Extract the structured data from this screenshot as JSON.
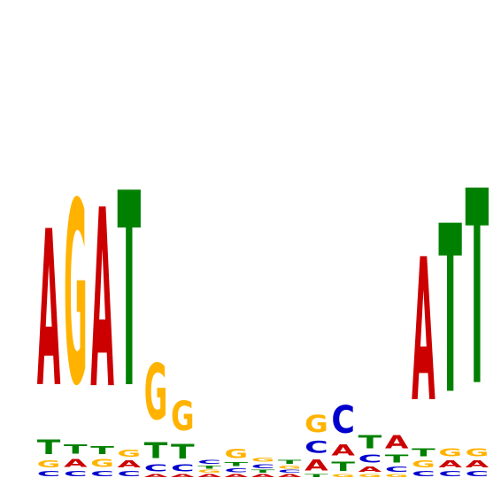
{
  "chart_data": {
    "type": "sequence-logo",
    "alphabet": [
      "A",
      "C",
      "G",
      "T"
    ],
    "colors": {
      "A": "#cc0000",
      "C": "#0000cc",
      "G": "#ffb300",
      "T": "#008000"
    },
    "ylim": [
      0,
      2
    ],
    "positions": [
      {
        "A": 1.18,
        "C": 0.04,
        "G": 0.05,
        "T": 0.11
      },
      {
        "A": 0.06,
        "C": 0.04,
        "G": 1.38,
        "T": 0.07
      },
      {
        "A": 1.35,
        "C": 0.04,
        "G": 0.06,
        "T": 0.06
      },
      {
        "A": 0.05,
        "C": 0.04,
        "G": 0.05,
        "T": 1.47
      },
      {
        "A": 0.02,
        "C": 0.05,
        "G": 0.42,
        "T": 0.12
      },
      {
        "A": 0.02,
        "C": 0.05,
        "G": 0.22,
        "T": 0.11
      },
      {
        "A": 0.02,
        "C": 0.03,
        "G": 0.02,
        "T": 0.02
      },
      {
        "A": 0.02,
        "C": 0.03,
        "G": 0.07,
        "T": 0.03
      },
      {
        "A": 0.02,
        "C": 0.03,
        "G": 0.03,
        "T": 0.02
      },
      {
        "A": 0.02,
        "C": 0.02,
        "G": 0.02,
        "T": 0.03
      },
      {
        "A": 0.08,
        "C": 0.09,
        "G": 0.13,
        "T": 0.02
      },
      {
        "A": 0.08,
        "C": 0.21,
        "G": 0.02,
        "T": 0.07
      },
      {
        "A": 0.04,
        "C": 0.06,
        "G": 0.02,
        "T": 0.1
      },
      {
        "A": 0.1,
        "C": 0.04,
        "G": 0.02,
        "T": 0.06
      },
      {
        "A": 1.08,
        "C": 0.04,
        "G": 0.05,
        "T": 0.06
      },
      {
        "A": 0.05,
        "C": 0.04,
        "G": 0.06,
        "T": 1.27
      },
      {
        "A": 0.05,
        "C": 0.04,
        "G": 0.06,
        "T": 1.47
      }
    ]
  }
}
